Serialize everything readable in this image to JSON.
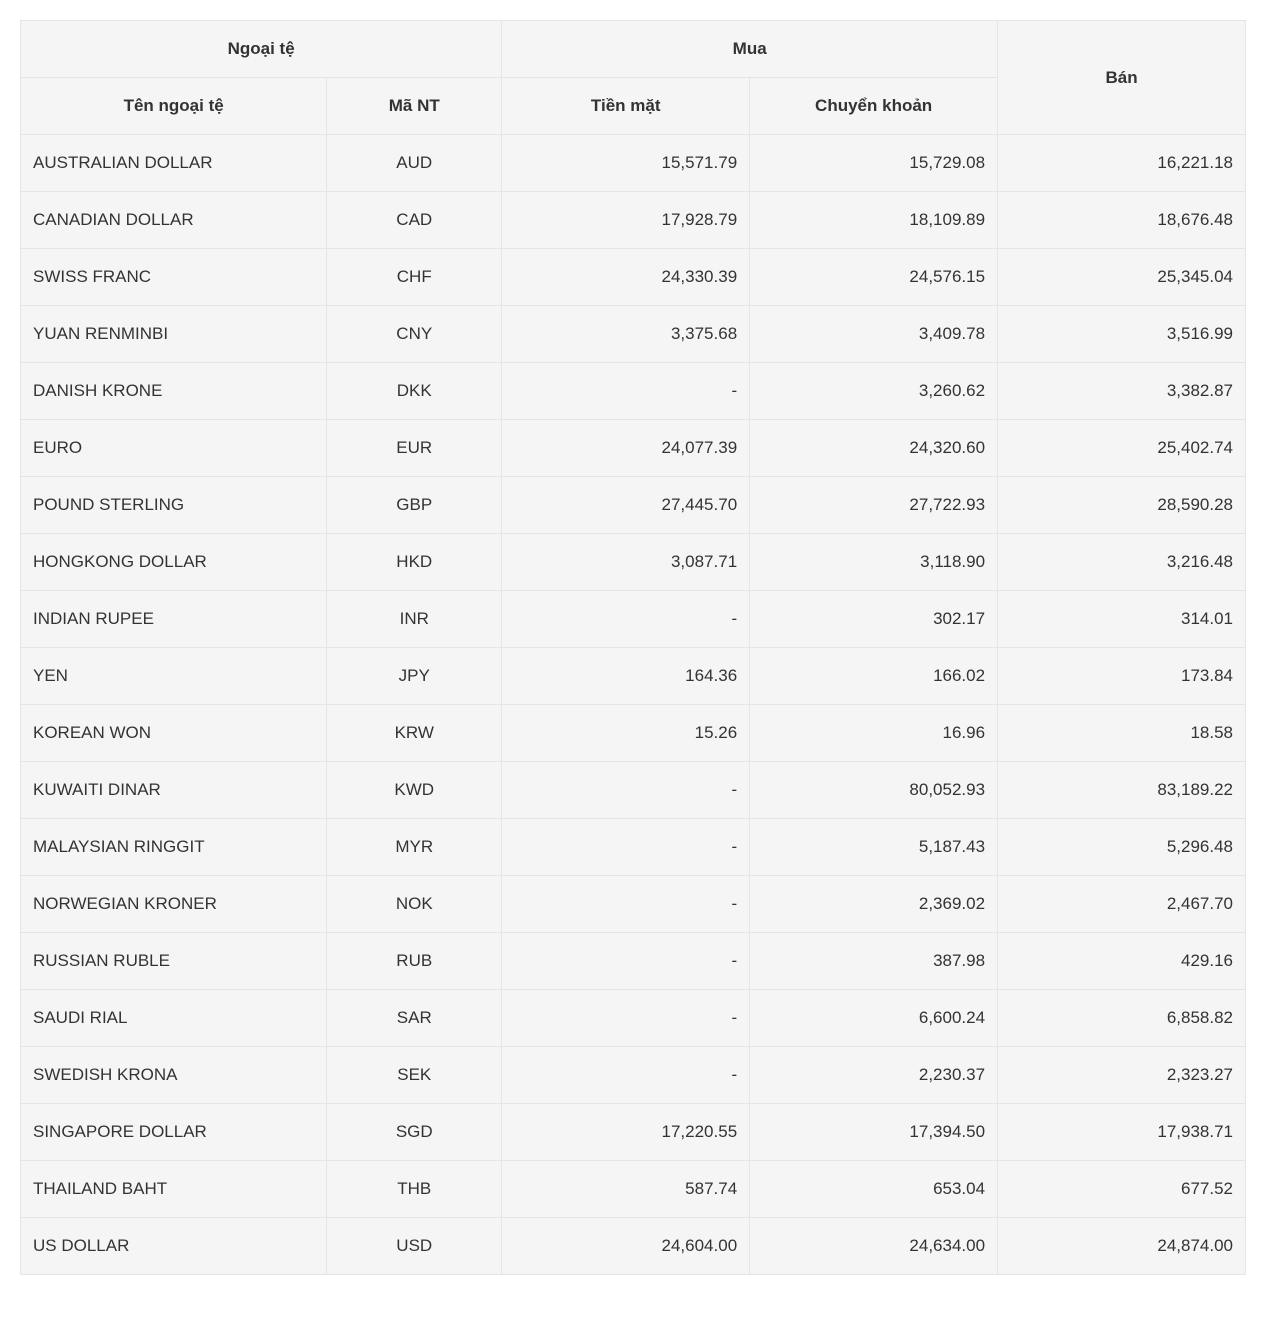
{
  "table": {
    "type": "table",
    "background_color": "#f5f5f5",
    "border_color": "#e5e5e5",
    "text_color": "#333333",
    "header_fontsize": 17,
    "cell_fontsize": 17,
    "header_fontweight": "bold",
    "headers": {
      "currency_group": "Ngoại tệ",
      "buy_group": "Mua",
      "sell": "Bán",
      "currency_name": "Tên ngoại tệ",
      "currency_code": "Mã NT",
      "cash": "Tiền mặt",
      "transfer": "Chuyển khoản"
    },
    "column_align": {
      "name": "left",
      "code": "center",
      "cash": "right",
      "transfer": "right",
      "sell": "right"
    },
    "column_widths": {
      "name": "21%",
      "code": "12%",
      "cash": "17%",
      "transfer": "17%",
      "sell": "17%"
    },
    "rows": [
      {
        "name": "AUSTRALIAN DOLLAR",
        "code": "AUD",
        "cash": "15,571.79",
        "transfer": "15,729.08",
        "sell": "16,221.18"
      },
      {
        "name": "CANADIAN DOLLAR",
        "code": "CAD",
        "cash": "17,928.79",
        "transfer": "18,109.89",
        "sell": "18,676.48"
      },
      {
        "name": "SWISS FRANC",
        "code": "CHF",
        "cash": "24,330.39",
        "transfer": "24,576.15",
        "sell": "25,345.04"
      },
      {
        "name": "YUAN RENMINBI",
        "code": "CNY",
        "cash": "3,375.68",
        "transfer": "3,409.78",
        "sell": "3,516.99"
      },
      {
        "name": "DANISH KRONE",
        "code": "DKK",
        "cash": "-",
        "transfer": "3,260.62",
        "sell": "3,382.87"
      },
      {
        "name": "EURO",
        "code": "EUR",
        "cash": "24,077.39",
        "transfer": "24,320.60",
        "sell": "25,402.74"
      },
      {
        "name": "POUND STERLING",
        "code": "GBP",
        "cash": "27,445.70",
        "transfer": "27,722.93",
        "sell": "28,590.28"
      },
      {
        "name": "HONGKONG DOLLAR",
        "code": "HKD",
        "cash": "3,087.71",
        "transfer": "3,118.90",
        "sell": "3,216.48"
      },
      {
        "name": "INDIAN RUPEE",
        "code": "INR",
        "cash": "-",
        "transfer": "302.17",
        "sell": "314.01"
      },
      {
        "name": "YEN",
        "code": "JPY",
        "cash": "164.36",
        "transfer": "166.02",
        "sell": "173.84"
      },
      {
        "name": "KOREAN WON",
        "code": "KRW",
        "cash": "15.26",
        "transfer": "16.96",
        "sell": "18.58"
      },
      {
        "name": "KUWAITI DINAR",
        "code": "KWD",
        "cash": "-",
        "transfer": "80,052.93",
        "sell": "83,189.22"
      },
      {
        "name": "MALAYSIAN RINGGIT",
        "code": "MYR",
        "cash": "-",
        "transfer": "5,187.43",
        "sell": "5,296.48"
      },
      {
        "name": "NORWEGIAN KRONER",
        "code": "NOK",
        "cash": "-",
        "transfer": "2,369.02",
        "sell": "2,467.70"
      },
      {
        "name": "RUSSIAN RUBLE",
        "code": "RUB",
        "cash": "-",
        "transfer": "387.98",
        "sell": "429.16"
      },
      {
        "name": "SAUDI RIAL",
        "code": "SAR",
        "cash": "-",
        "transfer": "6,600.24",
        "sell": "6,858.82"
      },
      {
        "name": "SWEDISH KRONA",
        "code": "SEK",
        "cash": "-",
        "transfer": "2,230.37",
        "sell": "2,323.27"
      },
      {
        "name": "SINGAPORE DOLLAR",
        "code": "SGD",
        "cash": "17,220.55",
        "transfer": "17,394.50",
        "sell": "17,938.71"
      },
      {
        "name": "THAILAND BAHT",
        "code": "THB",
        "cash": "587.74",
        "transfer": "653.04",
        "sell": "677.52"
      },
      {
        "name": "US DOLLAR",
        "code": "USD",
        "cash": "24,604.00",
        "transfer": "24,634.00",
        "sell": "24,874.00"
      }
    ]
  }
}
